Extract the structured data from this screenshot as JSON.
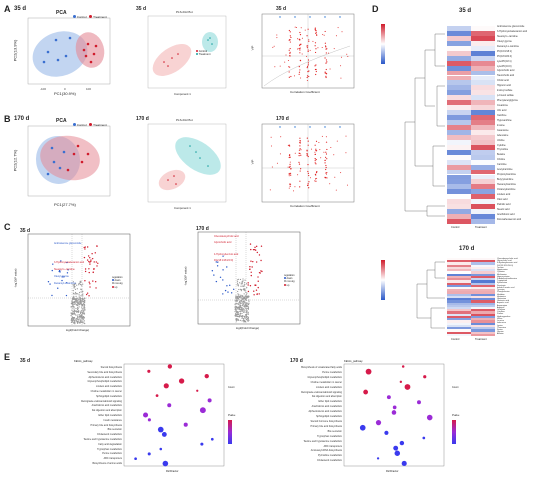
{
  "panels": {
    "A": {
      "letter": "A",
      "day": "35 d"
    },
    "B": {
      "letter": "B",
      "day": "170 d"
    },
    "C": {
      "letter": "C"
    },
    "D": {
      "letter": "D"
    },
    "E": {
      "letter": "E"
    }
  },
  "pca": {
    "title": "PCA",
    "legend_control": "Control",
    "legend_treatment": "Treatment",
    "a_xlabel": "PC1(30.9%)",
    "a_ylabel": "PC2(13.9%)",
    "b_xlabel": "PC1(27.7%)",
    "b_ylabel": "PC2(12.7%)"
  },
  "plsda": {
    "title": "PLS-DA Plot",
    "legend_control": "Control",
    "legend_treatment": "Treatment",
    "xlabel": "Component 1"
  },
  "scatter": {
    "xlabel": "Correlation Coefficient",
    "ylabel": "VIP"
  },
  "volcano": {
    "c35_day": "35 d",
    "c170_day": "170 d",
    "xlabel": "log2(Fold Change)",
    "ylabel": "-log10(P value)",
    "legend_title": "regulation",
    "legend_items": [
      "down",
      "non-sig",
      "up"
    ],
    "c35_annotations": [
      "Androsterone glucuronide",
      "3-Hydroxyoctadecanoic acid",
      "Stearoyl-L-carnitine",
      "Oleoyl glycine",
      "Decanoyl-L-carnitine"
    ],
    "c170_annotations": [
      "Chenodeoxycholic acid",
      "Glycocholic acid",
      "4-Hydroxybenzoic acid",
      "DG(18:1/18:2/0:0)"
    ]
  },
  "heatmap": {
    "d35_day": "35 d",
    "d170_day": "170 d",
    "xlabels": [
      "Control",
      "Treatment"
    ],
    "rows_35": [
      "Androsterone glucuronide",
      "3-Hydroxyoctadecanoic acid",
      "Stearoyl-L-carnitine",
      "Oleoyl glycine",
      "Decanoyl-L-carnitine",
      "PC(16:0/18:1)",
      "PC(18:0/20:4)",
      "LysoPC(18:1)",
      "LysoPC(16:0)",
      "Glycocholic acid",
      "Taurocholic acid",
      "Cholic acid",
      "Hippuric acid",
      "Indoxyl sulfate",
      "p-Cresol sulfate",
      "Phenylacetylglycine",
      "Creatinine",
      "Uric acid",
      "Xanthine",
      "Hypoxanthine",
      "Inosine",
      "Guanosine",
      "Adenosine",
      "Uridine",
      "Cytidine",
      "Thymidine",
      "Betaine",
      "Choline",
      "Carnitine",
      "Acetylcarnitine",
      "Propionylcarnitine",
      "Butyrylcarnitine",
      "Hexanoylcarnitine",
      "Octanoylcarnitine",
      "Linoleic acid",
      "Oleic acid",
      "Palmitic acid",
      "Stearic acid",
      "Arachidonic acid",
      "Docosahexaenoic acid"
    ],
    "rows_170": [
      "Chenodeoxycholic acid",
      "Glycocholic acid",
      "4-Hydroxybenzoic acid",
      "DG(18:1/18:2/0:0)",
      "Taurine",
      "Hypotaurine",
      "Cysteine",
      "Methionine",
      "Homocysteine",
      "S-Adenosylmethionine",
      "Tryptophan",
      "Kynurenine",
      "Serotonin",
      "Indole-3-acetic acid",
      "Tyrosine",
      "Phenylalanine",
      "Histidine",
      "Histamine",
      "Glutamine",
      "Glutamic acid",
      "Aspartic acid",
      "Asparagine",
      "Arginine",
      "Ornithine",
      "Citrulline",
      "Proline",
      "Hydroxyproline",
      "Valine",
      "Leucine",
      "Isoleucine",
      "Lysine",
      "Threonine",
      "Serine",
      "Glycine",
      "Alanine"
    ]
  },
  "kegg": {
    "e35_day": "35 d",
    "e170_day": "170 d",
    "header": "KEGG_pathway",
    "xlabel": "RichFactor",
    "e35_pathways": [
      "Steroid biosynthesis",
      "Secondary bile acid biosynthesis",
      "Alpha-linolenic acid metabolism",
      "Glycerophospholipid metabolism",
      "Linoleic acid metabolism",
      "Choline metabolism in cancer",
      "Sphingolipid metabolism",
      "Retrograde endocannabinoid signaling",
      "Arachidonic acid metabolism",
      "Fat digestion and absorption",
      "Ether lipid metabolism",
      "Insulin resistance",
      "Primary bile acid biosynthesis",
      "Bile secretion",
      "Cholesterol metabolism",
      "Taurine and hypotaurine metabolism",
      "Fatty acid degradation",
      "Tryptophan metabolism",
      "Purine metabolism",
      "ABC transporters",
      "Biosynthesis of amino acids"
    ],
    "e170_pathways": [
      "Biosynthesis of unsaturated fatty acids",
      "Purine metabolism",
      "Glycerophospholipid metabolism",
      "Choline metabolism in cancer",
      "Linoleic acid metabolism",
      "Retrograde endocannabinoid signaling",
      "Fat digestion and absorption",
      "Ether lipid metabolism",
      "Arachidonic acid metabolism",
      "Alpha-linolenic acid metabolism",
      "Sphingolipid metabolism",
      "Steroid hormone biosynthesis",
      "Primary bile acid biosynthesis",
      "Bile secretion",
      "Tryptophan metabolism",
      "Taurine and hypotaurine metabolism",
      "ABC transporters",
      "Aminoacyl-tRNA biosynthesis",
      "Pyrimidine metabolism",
      "Cholesterol metabolism"
    ],
    "legend_size": "Count",
    "legend_p": "Pvalue"
  },
  "chart_data": [
    {
      "type": "scatter",
      "title": "PCA",
      "xlabel": "PC1(30.9%)",
      "ylabel": "PC2(13.9%)",
      "series": [
        {
          "name": "Control",
          "values": [
            [
              -40,
              25
            ],
            [
              -55,
              10
            ],
            [
              -30,
              -5
            ],
            [
              -60,
              -15
            ],
            [
              -20,
              30
            ],
            [
              -45,
              0
            ]
          ]
        },
        {
          "name": "Treatment",
          "values": [
            [
              45,
              10
            ],
            [
              55,
              -5
            ],
            [
              60,
              15
            ],
            [
              40,
              20
            ],
            [
              50,
              0
            ],
            [
              65,
              -10
            ]
          ]
        }
      ]
    },
    {
      "type": "scatter",
      "title": "PCA",
      "xlabel": "PC1(27.7%)",
      "ylabel": "PC2(12.7%)",
      "series": [
        {
          "name": "Control",
          "values": [
            [
              -20,
              10
            ],
            [
              -10,
              25
            ],
            [
              5,
              -5
            ],
            [
              15,
              20
            ],
            [
              -5,
              0
            ],
            [
              10,
              30
            ]
          ]
        },
        {
          "name": "Treatment",
          "values": [
            [
              20,
              -10
            ],
            [
              40,
              5
            ],
            [
              30,
              25
            ],
            [
              50,
              15
            ],
            [
              25,
              -20
            ],
            [
              60,
              0
            ]
          ]
        }
      ]
    }
  ]
}
